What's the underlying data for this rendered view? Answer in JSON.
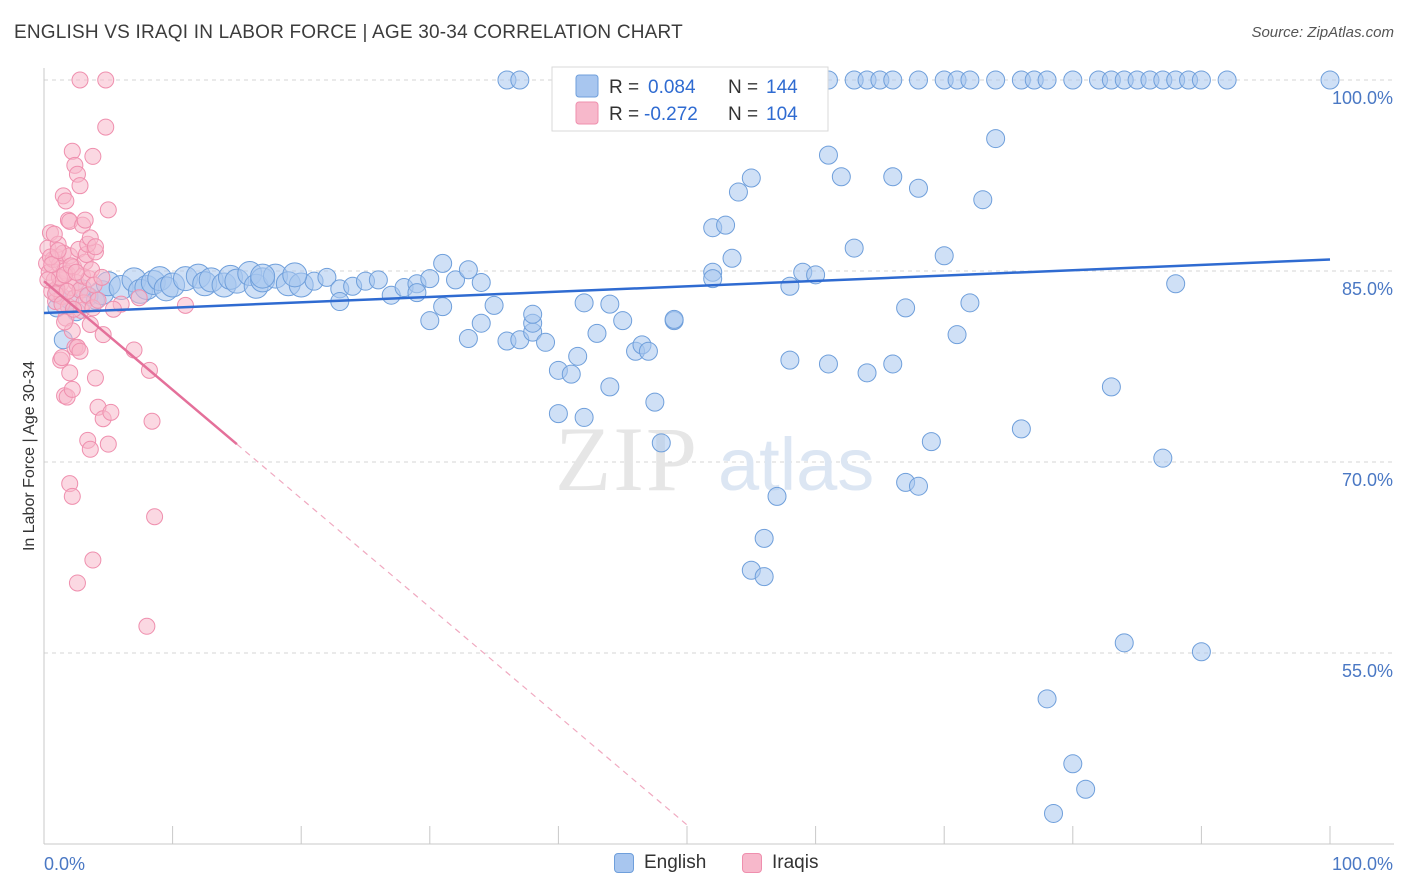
{
  "title": "ENGLISH VS IRAQI IN LABOR FORCE | AGE 30-34 CORRELATION CHART",
  "source": "Source: ZipAtlas.com",
  "watermark": {
    "zip": "ZIP",
    "atlas": "atlas"
  },
  "colors": {
    "english_fill": "#a8c6ef",
    "english_stroke": "#6f9fdb",
    "english_line": "#2f6bd1",
    "iraqi_fill": "#f7b8cb",
    "iraqi_stroke": "#ef8fae",
    "iraqi_line": "#e4709a",
    "tick": "#4a78c4",
    "grid": "#d6d6d6"
  },
  "legend": {
    "items": [
      {
        "r_label": "R =",
        "r_value": "0.084",
        "n_label": "N =",
        "n_value": "144"
      },
      {
        "r_label": "R =",
        "r_value": "-0.272",
        "n_label": "N =",
        "n_value": "104"
      }
    ]
  },
  "bottom_legend": [
    "English",
    "Iraqis"
  ],
  "chart_data": {
    "type": "scatter",
    "title": "ENGLISH VS IRAQI IN LABOR FORCE | AGE 30-34 CORRELATION CHART",
    "xlabel": "",
    "ylabel": "In Labor Force | Age 30-34",
    "xlim": [
      0,
      100
    ],
    "ylim": [
      40,
      101.5
    ],
    "x_tick_labels": [
      "0.0%",
      "100.0%"
    ],
    "y_ticks": [
      55,
      70,
      85,
      100
    ],
    "y_tick_labels": [
      "55.0%",
      "70.0%",
      "85.0%",
      "100.0%"
    ],
    "grid": "horizontal dashed",
    "legend_position": "top-center",
    "series": [
      {
        "name": "English",
        "trend": {
          "x0": 0,
          "y0": 81.7,
          "x1": 100,
          "y1": 85.9
        },
        "points": [
          [
            1,
            83.2
          ],
          [
            1,
            82.1
          ],
          [
            1.5,
            79.6
          ],
          [
            2,
            82.7
          ],
          [
            2.5,
            81.8
          ],
          [
            3,
            83.6
          ],
          [
            3.5,
            83.0
          ],
          [
            4,
            82.7
          ],
          [
            4.5,
            83.3
          ],
          [
            5,
            84.0
          ],
          [
            6,
            83.7
          ],
          [
            7,
            84.3
          ],
          [
            7.5,
            83.4
          ],
          [
            8,
            83.7
          ],
          [
            8.5,
            84.1
          ],
          [
            9,
            84.4
          ],
          [
            9.5,
            83.6
          ],
          [
            10,
            83.9
          ],
          [
            11,
            84.4
          ],
          [
            12,
            84.6
          ],
          [
            12.5,
            84.0
          ],
          [
            13,
            84.3
          ],
          [
            14,
            83.9
          ],
          [
            14.5,
            84.5
          ],
          [
            15,
            84.2
          ],
          [
            16,
            84.8
          ],
          [
            16.5,
            83.8
          ],
          [
            17,
            84.3
          ],
          [
            18,
            84.6
          ],
          [
            19,
            84.0
          ],
          [
            20,
            83.9
          ],
          [
            21,
            84.2
          ],
          [
            22,
            84.5
          ],
          [
            23,
            83.6
          ],
          [
            24,
            83.8
          ],
          [
            25,
            84.2
          ],
          [
            26,
            84.3
          ],
          [
            27,
            83.1
          ],
          [
            28,
            83.7
          ],
          [
            29,
            84.0
          ],
          [
            30,
            84.4
          ],
          [
            31,
            85.6
          ],
          [
            32,
            84.3
          ],
          [
            33,
            85.1
          ],
          [
            34,
            84.1
          ],
          [
            17,
            84.6
          ],
          [
            19.5,
            84.7
          ],
          [
            23,
            82.6
          ],
          [
            29,
            83.3
          ],
          [
            30,
            81.1
          ],
          [
            31,
            82.2
          ],
          [
            33,
            79.7
          ],
          [
            34,
            80.9
          ],
          [
            35,
            82.3
          ],
          [
            36,
            79.5
          ],
          [
            37,
            79.6
          ],
          [
            38,
            80.2
          ],
          [
            38,
            80.9
          ],
          [
            38,
            81.6
          ],
          [
            39,
            79.4
          ],
          [
            40,
            77.2
          ],
          [
            40,
            73.8
          ],
          [
            41,
            76.9
          ],
          [
            41.5,
            78.3
          ],
          [
            42,
            73.5
          ],
          [
            42,
            82.5
          ],
          [
            43,
            80.1
          ],
          [
            44,
            75.9
          ],
          [
            44,
            82.4
          ],
          [
            45,
            81.1
          ],
          [
            46,
            78.7
          ],
          [
            46.5,
            79.2
          ],
          [
            47,
            78.7
          ],
          [
            47.5,
            74.7
          ],
          [
            48,
            71.5
          ],
          [
            49,
            81.1
          ],
          [
            49,
            81.2
          ],
          [
            52,
            84.9
          ],
          [
            52,
            88.4
          ],
          [
            52,
            84.4
          ],
          [
            53,
            88.6
          ],
          [
            53.5,
            86.0
          ],
          [
            54,
            91.2
          ],
          [
            55,
            92.3
          ],
          [
            55,
            61.5
          ],
          [
            56,
            61.0
          ],
          [
            56,
            64.0
          ],
          [
            57,
            67.3
          ],
          [
            58,
            78.0
          ],
          [
            58,
            83.8
          ],
          [
            59,
            84.9
          ],
          [
            60,
            84.7
          ],
          [
            61,
            77.7
          ],
          [
            61,
            94.1
          ],
          [
            62,
            92.4
          ],
          [
            63,
            86.8
          ],
          [
            64,
            77.0
          ],
          [
            66,
            77.7
          ],
          [
            67,
            82.1
          ],
          [
            67,
            68.4
          ],
          [
            68,
            68.1
          ],
          [
            68,
            91.5
          ],
          [
            69,
            71.6
          ],
          [
            70,
            86.2
          ],
          [
            71,
            80.0
          ],
          [
            72,
            82.5
          ],
          [
            73,
            90.6
          ],
          [
            74,
            95.4
          ],
          [
            76,
            72.6
          ],
          [
            78,
            51.4
          ],
          [
            80,
            46.3
          ],
          [
            81,
            44.3
          ],
          [
            83,
            75.9
          ],
          [
            84,
            55.8
          ],
          [
            87,
            70.3
          ],
          [
            88,
            84.0
          ],
          [
            90,
            55.1
          ],
          [
            52,
            100
          ],
          [
            54,
            100
          ],
          [
            56,
            100
          ],
          [
            59,
            100
          ],
          [
            61,
            100
          ],
          [
            63,
            100
          ],
          [
            64,
            100
          ],
          [
            65,
            100
          ],
          [
            66,
            100
          ],
          [
            68,
            100
          ],
          [
            70,
            100
          ],
          [
            71,
            100
          ],
          [
            72,
            100
          ],
          [
            74,
            100
          ],
          [
            76,
            100
          ],
          [
            77,
            100
          ],
          [
            78,
            100
          ],
          [
            80,
            100
          ],
          [
            82,
            100
          ],
          [
            83,
            100
          ],
          [
            84,
            100
          ],
          [
            85,
            100
          ],
          [
            86,
            100
          ],
          [
            87,
            100
          ],
          [
            88,
            100
          ],
          [
            89,
            100
          ],
          [
            90,
            100
          ],
          [
            92,
            100
          ],
          [
            100,
            100
          ],
          [
            36,
            100
          ],
          [
            37,
            100
          ],
          [
            78.5,
            42.4
          ],
          [
            66,
            92.4
          ]
        ]
      },
      {
        "name": "Iraqis",
        "trend": {
          "x0": 0,
          "y0": 84.2,
          "x1": 15,
          "y1": 71.4
        },
        "trend_dashed_to": {
          "x": 50,
          "y": 41.5
        },
        "points": [
          [
            0.2,
            85.6
          ],
          [
            0.3,
            86.8
          ],
          [
            0.4,
            84.9
          ],
          [
            0.5,
            88.0
          ],
          [
            0.6,
            83.4
          ],
          [
            0.7,
            85.9
          ],
          [
            0.8,
            84.3
          ],
          [
            0.9,
            82.6
          ],
          [
            1.0,
            86.1
          ],
          [
            1.1,
            87.1
          ],
          [
            1.2,
            85.5
          ],
          [
            1.3,
            84.0
          ],
          [
            1.4,
            83.0
          ],
          [
            1.5,
            86.4
          ],
          [
            1.6,
            85.0
          ],
          [
            1.7,
            81.3
          ],
          [
            1.8,
            84.8
          ],
          [
            1.9,
            82.2
          ],
          [
            2.0,
            86.2
          ],
          [
            2.1,
            83.7
          ],
          [
            2.2,
            80.3
          ],
          [
            2.3,
            85.3
          ],
          [
            2.4,
            82.9
          ],
          [
            2.5,
            84.1
          ],
          [
            2.6,
            79.0
          ],
          [
            2.7,
            86.7
          ],
          [
            2.8,
            83.5
          ],
          [
            2.9,
            81.9
          ],
          [
            3.0,
            84.6
          ],
          [
            3.1,
            82.5
          ],
          [
            3.2,
            85.7
          ],
          [
            3.3,
            86.3
          ],
          [
            3.4,
            83.1
          ],
          [
            3.5,
            84.4
          ],
          [
            3.6,
            80.8
          ],
          [
            3.7,
            85.1
          ],
          [
            3.8,
            82.1
          ],
          [
            3.9,
            83.9
          ],
          [
            4.0,
            86.5
          ],
          [
            4.2,
            82.7
          ],
          [
            0.5,
            86.1
          ],
          [
            0.8,
            87.9
          ],
          [
            1.0,
            83.6
          ],
          [
            1.2,
            84.5
          ],
          [
            1.3,
            78.0
          ],
          [
            1.5,
            90.9
          ],
          [
            1.7,
            90.5
          ],
          [
            1.9,
            89.0
          ],
          [
            2.0,
            88.9
          ],
          [
            2.2,
            94.4
          ],
          [
            2.4,
            93.3
          ],
          [
            2.6,
            92.6
          ],
          [
            2.8,
            91.7
          ],
          [
            3.0,
            88.6
          ],
          [
            3.2,
            89.0
          ],
          [
            3.4,
            87.1
          ],
          [
            3.6,
            87.6
          ],
          [
            3.8,
            94.0
          ],
          [
            4.0,
            86.9
          ],
          [
            4.5,
            84.5
          ],
          [
            4.8,
            96.3
          ],
          [
            5.0,
            89.8
          ],
          [
            2.8,
            100
          ],
          [
            4.8,
            100
          ],
          [
            1.4,
            78.2
          ],
          [
            1.6,
            75.2
          ],
          [
            1.8,
            75.1
          ],
          [
            2.0,
            77.0
          ],
          [
            2.2,
            75.7
          ],
          [
            2.4,
            79.0
          ],
          [
            2.6,
            79.0
          ],
          [
            2.8,
            78.7
          ],
          [
            3.4,
            71.7
          ],
          [
            3.6,
            71.0
          ],
          [
            4.0,
            76.6
          ],
          [
            4.2,
            74.3
          ],
          [
            4.6,
            73.4
          ],
          [
            5.0,
            71.4
          ],
          [
            5.2,
            73.9
          ],
          [
            6.0,
            82.4
          ],
          [
            7.0,
            78.8
          ],
          [
            8.2,
            77.2
          ],
          [
            8.4,
            73.2
          ],
          [
            8.6,
            65.7
          ],
          [
            8.0,
            57.1
          ],
          [
            3.8,
            62.3
          ],
          [
            2.6,
            60.5
          ],
          [
            2.0,
            68.3
          ],
          [
            2.2,
            67.3
          ],
          [
            1.6,
            81.0
          ],
          [
            0.3,
            84.3
          ],
          [
            0.6,
            85.5
          ],
          [
            0.9,
            83.2
          ],
          [
            1.1,
            86.6
          ],
          [
            1.4,
            82.4
          ],
          [
            1.6,
            84.7
          ],
          [
            1.8,
            83.4
          ],
          [
            2.1,
            85.4
          ],
          [
            2.3,
            82.0
          ],
          [
            2.5,
            84.9
          ],
          [
            4.6,
            80.0
          ],
          [
            5.4,
            82.0
          ],
          [
            7.4,
            82.9
          ],
          [
            11.0,
            82.3
          ]
        ]
      }
    ]
  }
}
